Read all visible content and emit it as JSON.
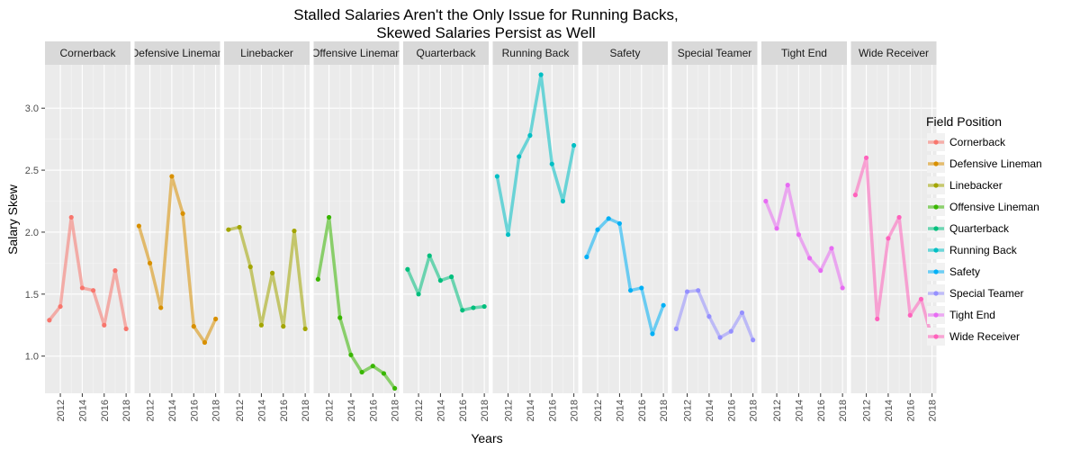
{
  "chart_data": {
    "type": "line",
    "title": [
      "Stalled Salaries Aren't the Only Issue for Running Backs,",
      "Skewed Salaries Persist as Well"
    ],
    "xlabel": "Years",
    "ylabel": "Salary Skew",
    "x": [
      2011,
      2012,
      2013,
      2014,
      2015,
      2016,
      2017,
      2018
    ],
    "x_ticks": [
      2012,
      2014,
      2016,
      2018
    ],
    "xlim": [
      2010.6,
      2018.4
    ],
    "y_ticks": [
      1.0,
      1.5,
      2.0,
      2.5,
      3.0
    ],
    "y_tick_labels": [
      "1.0",
      "1.5",
      "2.0",
      "2.5",
      "3.0"
    ],
    "ylim": [
      0.7,
      3.35
    ],
    "grid": true,
    "facet_by": "Field Position",
    "legend": {
      "title": "Field Position",
      "position": "right"
    },
    "series": [
      {
        "name": "Cornerback",
        "color": "#F8766D",
        "values": [
          1.29,
          1.4,
          2.12,
          1.55,
          1.53,
          1.25,
          1.69,
          1.22
        ]
      },
      {
        "name": "Defensive Lineman",
        "color": "#D89000",
        "values": [
          2.05,
          1.75,
          1.39,
          2.45,
          2.15,
          1.24,
          1.11,
          1.3
        ]
      },
      {
        "name": "Linebacker",
        "color": "#A3A500",
        "values": [
          2.02,
          2.04,
          1.72,
          1.25,
          1.67,
          1.24,
          2.01,
          1.22
        ]
      },
      {
        "name": "Offensive Lineman",
        "color": "#39B600",
        "values": [
          1.62,
          2.12,
          1.31,
          1.01,
          0.87,
          0.92,
          0.86,
          0.74
        ]
      },
      {
        "name": "Quarterback",
        "color": "#00BF7D",
        "values": [
          1.7,
          1.5,
          1.81,
          1.61,
          1.64,
          1.37,
          1.39,
          1.4
        ]
      },
      {
        "name": "Running Back",
        "color": "#00BFC4",
        "values": [
          2.45,
          1.98,
          2.61,
          2.78,
          3.27,
          2.55,
          2.25,
          2.7
        ]
      },
      {
        "name": "Safety",
        "color": "#00B0F6",
        "values": [
          1.8,
          2.02,
          2.11,
          2.07,
          1.53,
          1.55,
          1.18,
          1.41
        ]
      },
      {
        "name": "Special Teamer",
        "color": "#9590FF",
        "values": [
          1.22,
          1.52,
          1.53,
          1.32,
          1.15,
          1.2,
          1.35,
          1.13
        ]
      },
      {
        "name": "Tight End",
        "color": "#E76BF3",
        "values": [
          2.25,
          2.03,
          2.38,
          1.98,
          1.79,
          1.69,
          1.87,
          1.55
        ]
      },
      {
        "name": "Wide Receiver",
        "color": "#FF62BC",
        "values": [
          2.3,
          2.6,
          1.3,
          1.95,
          2.12,
          1.33,
          1.46,
          1.14
        ]
      }
    ]
  }
}
